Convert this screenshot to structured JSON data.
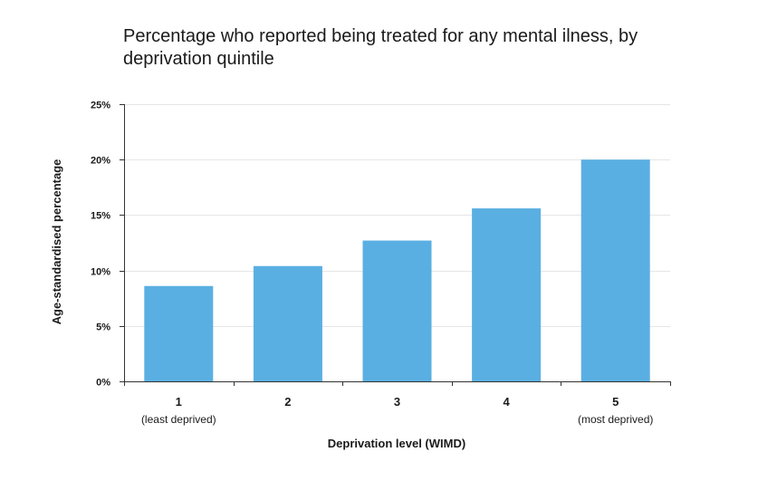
{
  "chart_data": {
    "type": "bar",
    "title": "Percentage who reported being treated for any mental ilness, by deprivation quintile",
    "xlabel": "Deprivation level (WIMD)",
    "ylabel": "Age-standardised  percentage",
    "categories": [
      "1",
      "2",
      "3",
      "4",
      "5"
    ],
    "category_sublabels": [
      "(least deprived)",
      "",
      "",
      "",
      "(most deprived)"
    ],
    "values": [
      8.6,
      10.4,
      12.7,
      15.6,
      20.0
    ],
    "ylim": [
      0,
      25
    ],
    "yticks": [
      0,
      5,
      10,
      15,
      20,
      25
    ],
    "ytick_labels": [
      "0%",
      "5%",
      "10%",
      "15%",
      "20%",
      "25%"
    ],
    "grid": true,
    "legend": "none",
    "bar_color": "#5aafe2",
    "grid_color": "#e6e6e6",
    "axis_color": "#333333"
  }
}
